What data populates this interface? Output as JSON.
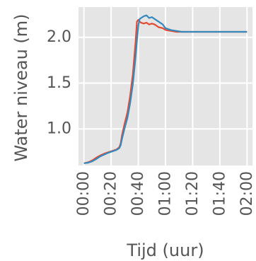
{
  "chart_data": {
    "type": "line",
    "title": "",
    "xlabel": "Tijd (uur)",
    "ylabel": "Water niveau (m)",
    "x_unit": "minutes",
    "xlim": [
      -4,
      124
    ],
    "ylim": [
      0.6,
      2.33
    ],
    "grid": true,
    "legend": "none",
    "background": "#e5e5e5",
    "x_ticks": [
      {
        "value": 0,
        "label": "00:00"
      },
      {
        "value": 20,
        "label": "00:20"
      },
      {
        "value": 40,
        "label": "00:40"
      },
      {
        "value": 60,
        "label": "01:00"
      },
      {
        "value": 80,
        "label": "01:20"
      },
      {
        "value": 100,
        "label": "01:40"
      },
      {
        "value": 120,
        "label": "02:00"
      }
    ],
    "y_ticks": [
      {
        "value": 1.0,
        "label": "1.0"
      },
      {
        "value": 1.5,
        "label": "1.5"
      },
      {
        "value": 2.0,
        "label": "2.0"
      }
    ],
    "series": [
      {
        "color": "#e24a33",
        "x": [
          0,
          3,
          6,
          9,
          12,
          15,
          18,
          21,
          24,
          26,
          27,
          28,
          30,
          32,
          34,
          36,
          38,
          39,
          40,
          41,
          42,
          44,
          46,
          48,
          50,
          52,
          55,
          58,
          60,
          64,
          68,
          72,
          80,
          90,
          100,
          110,
          120
        ],
        "y": [
          0.625,
          0.635,
          0.655,
          0.685,
          0.71,
          0.73,
          0.745,
          0.76,
          0.775,
          0.8,
          0.84,
          0.93,
          1.06,
          1.18,
          1.36,
          1.6,
          1.95,
          2.17,
          2.19,
          2.17,
          2.16,
          2.15,
          2.16,
          2.14,
          2.15,
          2.14,
          2.11,
          2.1,
          2.08,
          2.07,
          2.06,
          2.06,
          2.06,
          2.06,
          2.06,
          2.06,
          2.06
        ]
      },
      {
        "color": "#348abd",
        "x": [
          0,
          3,
          6,
          9,
          12,
          15,
          18,
          21,
          24,
          26,
          27,
          28,
          30,
          32,
          34,
          36,
          38,
          39,
          40,
          41,
          42,
          44,
          46,
          48,
          50,
          52,
          55,
          58,
          60,
          64,
          68,
          72,
          80,
          90,
          100,
          110,
          120
        ],
        "y": [
          0.625,
          0.63,
          0.645,
          0.67,
          0.7,
          0.72,
          0.74,
          0.755,
          0.77,
          0.79,
          0.82,
          0.89,
          1.01,
          1.12,
          1.28,
          1.49,
          1.78,
          1.96,
          2.13,
          2.2,
          2.21,
          2.23,
          2.24,
          2.21,
          2.22,
          2.2,
          2.17,
          2.14,
          2.1,
          2.08,
          2.07,
          2.06,
          2.06,
          2.06,
          2.06,
          2.06,
          2.06
        ]
      }
    ]
  }
}
